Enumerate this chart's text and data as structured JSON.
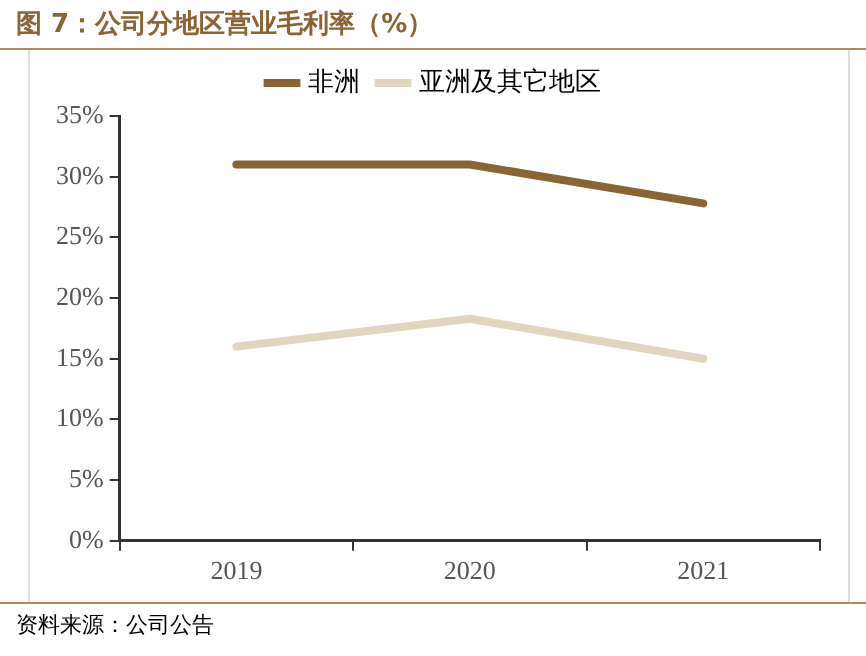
{
  "chart_data": {
    "type": "line",
    "title": "图 7：公司分地区营业毛利率（%）",
    "categories": [
      "2019",
      "2020",
      "2021"
    ],
    "series": [
      {
        "name": "非洲",
        "color": "#8b6434",
        "values": [
          31.0,
          31.0,
          27.8
        ]
      },
      {
        "name": "亚洲及其它地区",
        "color": "#e0d5bd",
        "values": [
          16.0,
          18.3,
          15.0
        ]
      }
    ],
    "ylim": [
      0,
      35
    ],
    "yticks": [
      {
        "value": 0,
        "label": "0%"
      },
      {
        "value": 5,
        "label": "5%"
      },
      {
        "value": 10,
        "label": "10%"
      },
      {
        "value": 15,
        "label": "15%"
      },
      {
        "value": 20,
        "label": "20%"
      },
      {
        "value": 25,
        "label": "25%"
      },
      {
        "value": 30,
        "label": "30%"
      },
      {
        "value": 35,
        "label": "35%"
      }
    ],
    "grid": false,
    "legend": "top",
    "marker": "none",
    "line_style": "solid",
    "annotations": [
      "资料来源：公司公告"
    ]
  }
}
